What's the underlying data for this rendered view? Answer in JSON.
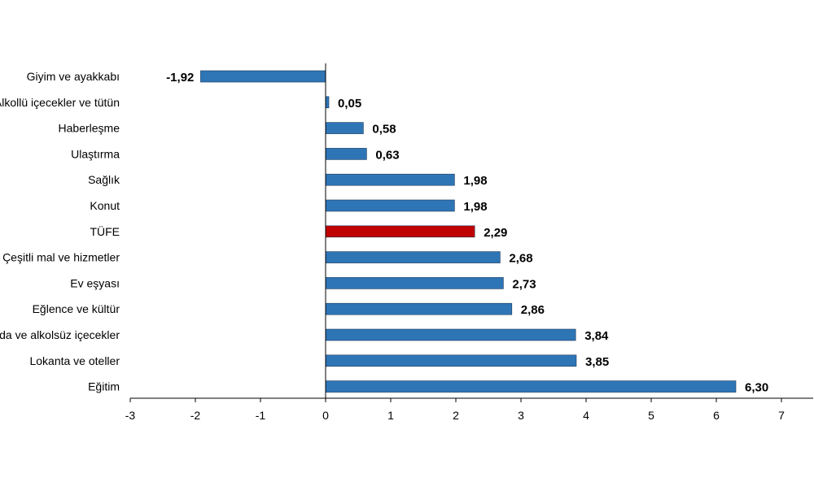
{
  "chart_data": {
    "type": "bar",
    "orientation": "horizontal",
    "title": "",
    "xlabel": "",
    "ylabel": "",
    "xlim": [
      -3,
      7
    ],
    "x_ticks": [
      "-3",
      "-2",
      "-1",
      "0",
      "1",
      "2",
      "3",
      "4",
      "5",
      "6",
      "7"
    ],
    "grid": false,
    "categories": [
      "Giyim ve ayakkabı",
      "Alkollü içecekler ve tütün",
      "Haberleşme",
      "Ulaştırma",
      "Sağlık",
      "Konut",
      "TÜFE",
      "Çeşitli mal ve hizmetler",
      "Ev eşyası",
      "Eğlence ve kültür",
      "Gıda ve alkolsüz içecekler",
      "Lokanta ve oteller",
      "Eğitim"
    ],
    "values": [
      -1.92,
      0.05,
      0.58,
      0.63,
      1.98,
      1.98,
      2.29,
      2.68,
      2.73,
      2.86,
      3.84,
      3.85,
      6.3
    ],
    "value_labels": [
      "-1,92",
      "0,05",
      "0,58",
      "0,63",
      "1,98",
      "1,98",
      "2,29",
      "2,68",
      "2,73",
      "2,86",
      "3,84",
      "3,85",
      "6,30"
    ],
    "highlight_index": 6,
    "colors": {
      "bar": "#2e75b6",
      "highlight": "#c00000",
      "bar_stroke": "#1f3d5c",
      "axis": "#000000"
    }
  }
}
